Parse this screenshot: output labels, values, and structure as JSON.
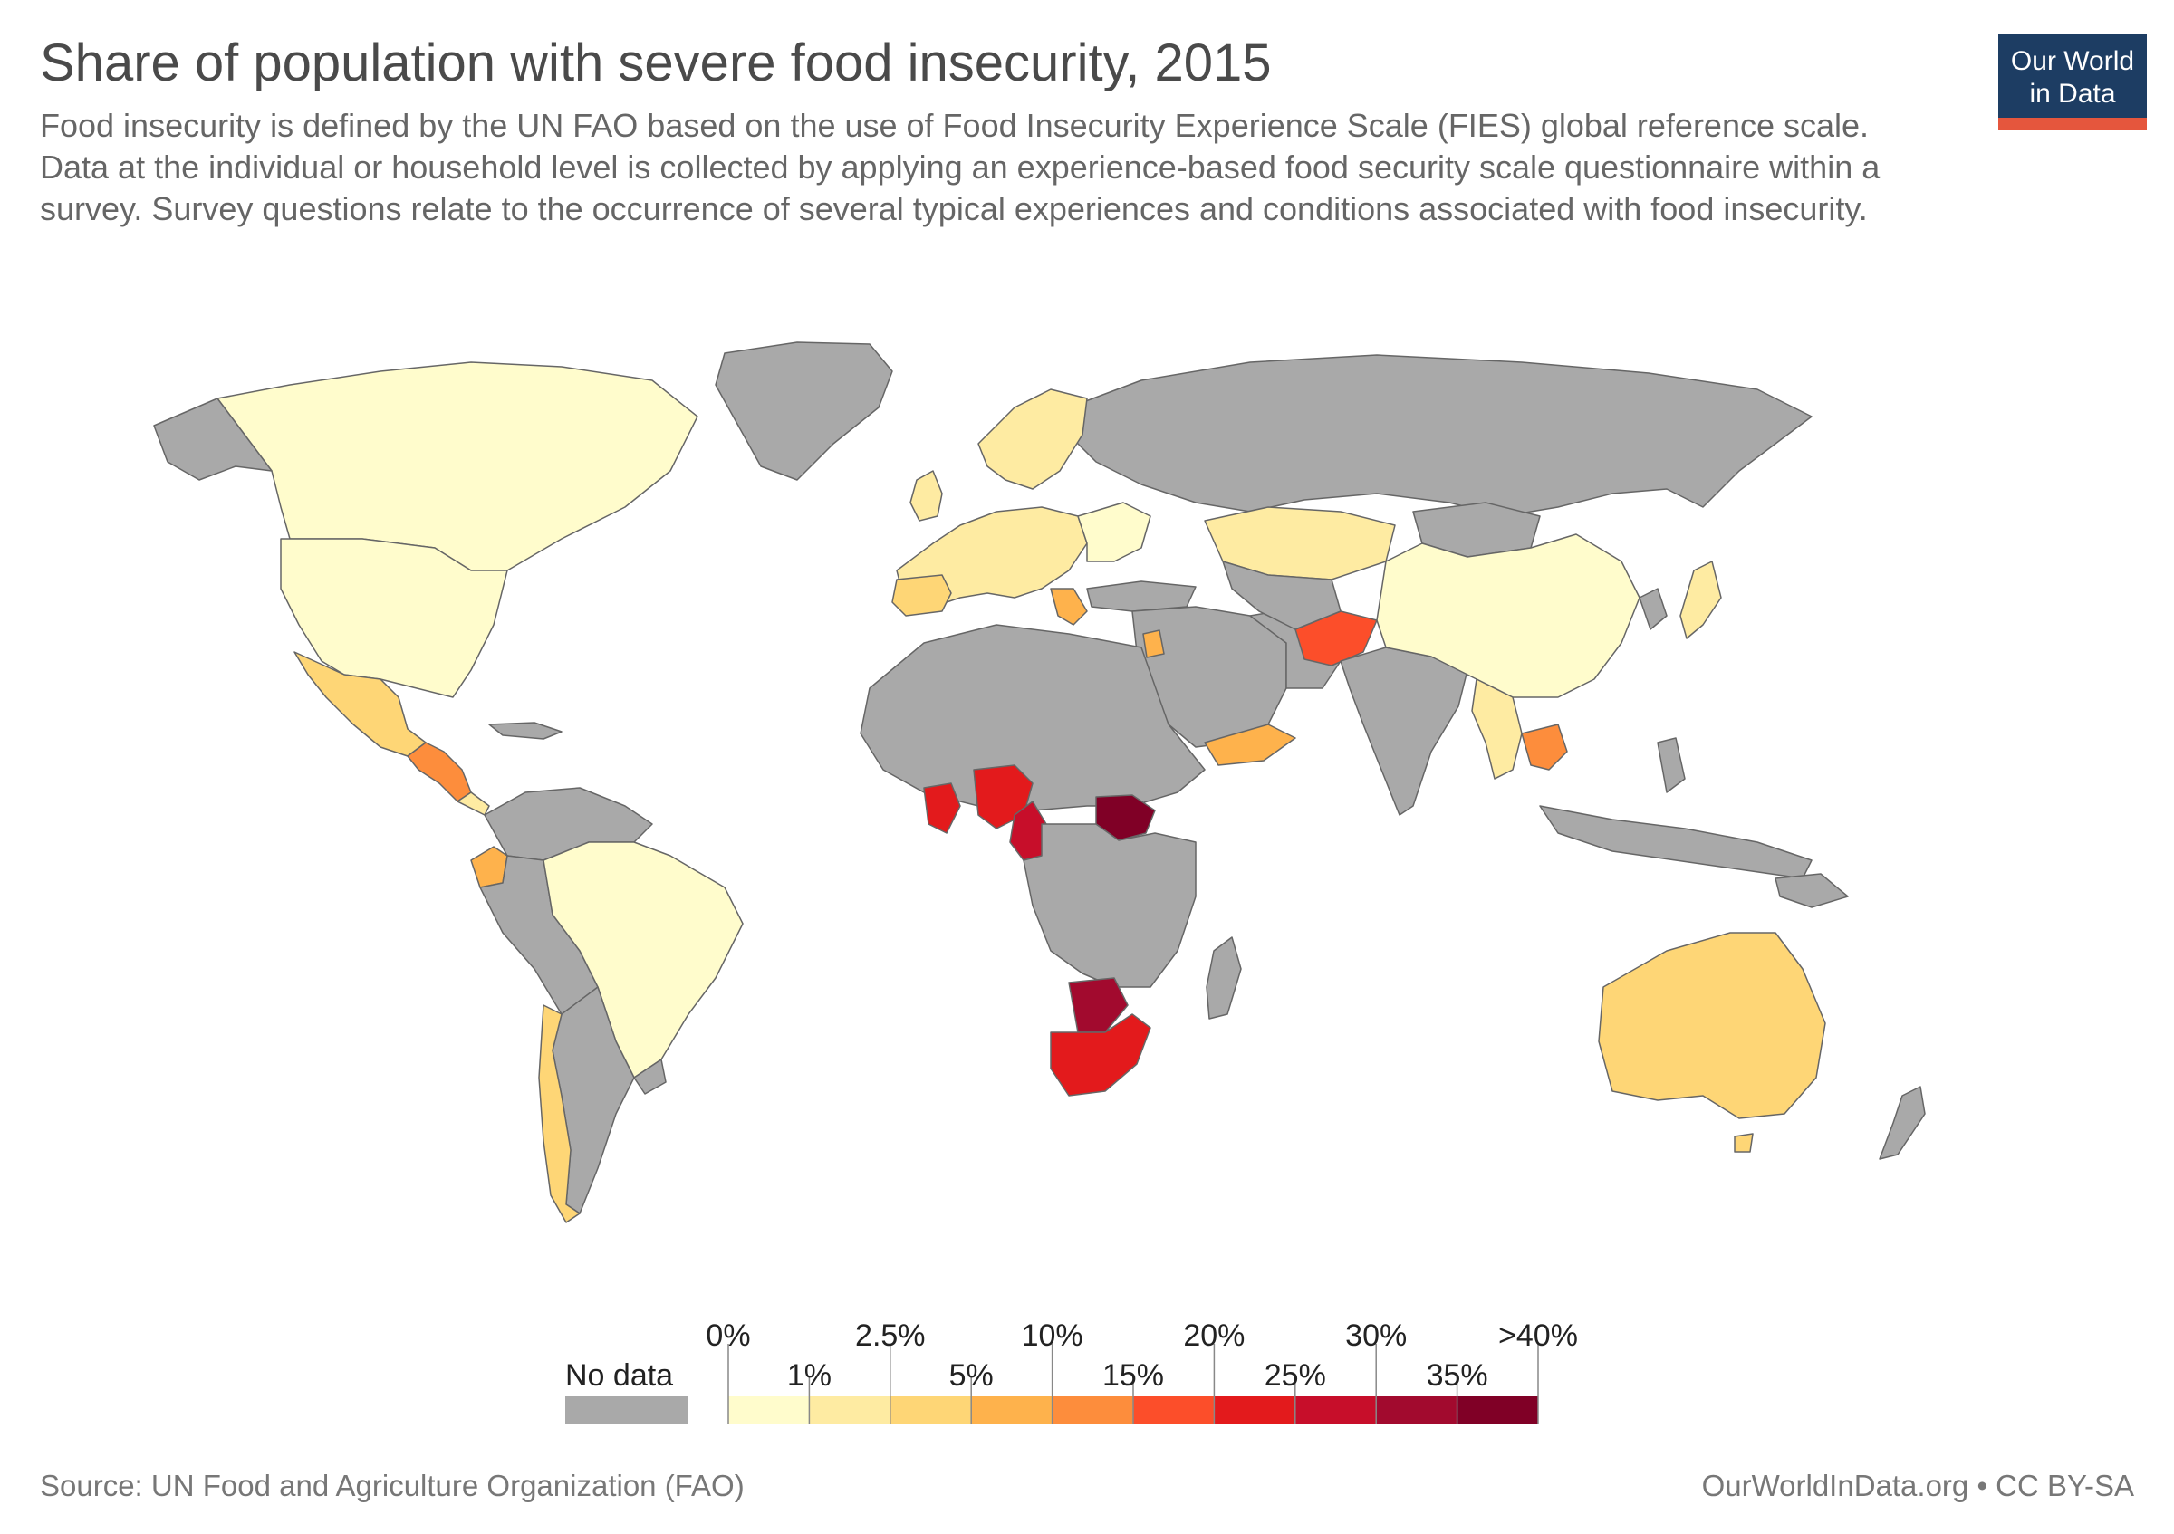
{
  "title": "Share of population with severe food insecurity, 2015",
  "subtitle": "Food insecurity is defined by the UN FAO based on the use of Food Insecurity Experience Scale (FIES) global reference scale. Data at the individual or household level is collected by applying an experience-based food security scale questionnaire within a survey. Survey questions relate to the occurrence of several typical experiences and conditions associated with food insecurity.",
  "logo": {
    "line1": "Our World",
    "line2": "in Data",
    "bg": "#1d3d63",
    "accent": "#e5563d"
  },
  "legend": {
    "no_data_label": "No data",
    "no_data_color": "#a9a9a9",
    "ticks_upper": [
      "0%",
      "2.5%",
      "10%",
      "20%",
      "30%",
      ">40%"
    ],
    "ticks_lower": [
      "1%",
      "5%",
      "15%",
      "25%",
      "35%"
    ],
    "bins": [
      {
        "from": 0,
        "to": 1,
        "color": "#fffccc"
      },
      {
        "from": 1,
        "to": 2.5,
        "color": "#feeba2"
      },
      {
        "from": 2.5,
        "to": 5,
        "color": "#fed676"
      },
      {
        "from": 5,
        "to": 10,
        "color": "#feb24c"
      },
      {
        "from": 10,
        "to": 15,
        "color": "#fd8d3c"
      },
      {
        "from": 15,
        "to": 20,
        "color": "#fc4e2a"
      },
      {
        "from": 20,
        "to": 25,
        "color": "#e31a1c"
      },
      {
        "from": 25,
        "to": 30,
        "color": "#c70e2a"
      },
      {
        "from": 30,
        "to": 35,
        "color": "#a20a2e"
      },
      {
        "from": 35,
        "to": 40,
        "color": "#800026"
      }
    ]
  },
  "map_data": {
    "no_data_color": "#a9a9a9",
    "regions": [
      {
        "name": "Canada",
        "color": "#fffccc"
      },
      {
        "name": "United States",
        "color": "#fffccc"
      },
      {
        "name": "Mexico",
        "color": "#fed676"
      },
      {
        "name": "Central America",
        "color": "#fd8d3c"
      },
      {
        "name": "Brazil",
        "color": "#fffccc"
      },
      {
        "name": "Ecuador",
        "color": "#feb24c"
      },
      {
        "name": "Chile",
        "color": "#fed676"
      },
      {
        "name": "Europe",
        "color": "#feeba2"
      },
      {
        "name": "Kazakhstan",
        "color": "#feeba2"
      },
      {
        "name": "China",
        "color": "#fffccc"
      },
      {
        "name": "Afghanistan",
        "color": "#fc4e2a"
      },
      {
        "name": "Yemen",
        "color": "#feb24c"
      },
      {
        "name": "Ghana",
        "color": "#e31a1c"
      },
      {
        "name": "Nigeria",
        "color": "#e31a1c"
      },
      {
        "name": "Cameroon",
        "color": "#c70e2a"
      },
      {
        "name": "South Sudan",
        "color": "#800026"
      },
      {
        "name": "Botswana",
        "color": "#a20a2e"
      },
      {
        "name": "South Africa",
        "color": "#e31a1c"
      },
      {
        "name": "Cambodia",
        "color": "#fd8d3c"
      },
      {
        "name": "Australia",
        "color": "#fed676"
      },
      {
        "name": "Japan",
        "color": "#feeba2"
      }
    ]
  },
  "source": "Source: UN Food and Agriculture Organization (FAO)",
  "credit": "OurWorldInData.org • CC BY-SA"
}
